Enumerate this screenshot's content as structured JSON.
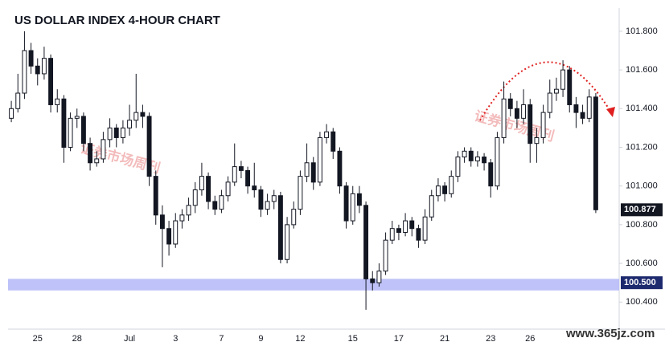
{
  "chart_data": {
    "type": "candlestick",
    "title": "US DOLLAR INDEX 4-HOUR CHART",
    "watermarks": [
      "证券市场周刊",
      "证券市场周刊",
      "www.365jz.com"
    ],
    "categories": [
      null,
      null,
      null,
      null,
      "25",
      null,
      null,
      null,
      null,
      null,
      "28",
      null,
      null,
      null,
      null,
      null,
      null,
      null,
      "Jul",
      null,
      null,
      null,
      null,
      null,
      null,
      "3",
      null,
      null,
      null,
      null,
      null,
      null,
      "7",
      null,
      null,
      null,
      null,
      null,
      "9",
      null,
      null,
      null,
      null,
      null,
      "12",
      null,
      null,
      null,
      null,
      null,
      null,
      null,
      "15",
      null,
      null,
      null,
      null,
      null,
      null,
      "17",
      null,
      null,
      null,
      null,
      null,
      null,
      "21",
      null,
      null,
      null,
      null,
      null,
      null,
      "23",
      null,
      null,
      null,
      null,
      null,
      "26",
      null,
      null,
      null,
      null,
      null,
      null,
      null,
      null,
      null,
      null
    ],
    "candles": [
      [
        101.35,
        101.44,
        101.33,
        101.4
      ],
      [
        101.4,
        101.58,
        101.38,
        101.48
      ],
      [
        101.48,
        101.8,
        101.45,
        101.7
      ],
      [
        101.7,
        101.74,
        101.58,
        101.62
      ],
      [
        101.62,
        101.66,
        101.52,
        101.58
      ],
      [
        101.58,
        101.72,
        101.55,
        101.66
      ],
      [
        101.66,
        101.68,
        101.38,
        101.42
      ],
      [
        101.42,
        101.5,
        101.38,
        101.45
      ],
      [
        101.45,
        101.47,
        101.12,
        101.2
      ],
      [
        101.2,
        101.38,
        101.18,
        101.35
      ],
      [
        101.35,
        101.4,
        101.3,
        101.36
      ],
      [
        101.36,
        101.38,
        101.18,
        101.22
      ],
      [
        101.22,
        101.25,
        101.08,
        101.12
      ],
      [
        101.12,
        101.18,
        101.1,
        101.14
      ],
      [
        101.14,
        101.28,
        101.12,
        101.24
      ],
      [
        101.24,
        101.35,
        101.2,
        101.3
      ],
      [
        101.3,
        101.32,
        101.2,
        101.25
      ],
      [
        101.25,
        101.34,
        101.22,
        101.3
      ],
      [
        101.3,
        101.42,
        101.26,
        101.34
      ],
      [
        101.34,
        101.58,
        101.3,
        101.38
      ],
      [
        101.38,
        101.42,
        101.3,
        101.36
      ],
      [
        101.36,
        101.38,
        101.0,
        101.05
      ],
      [
        101.05,
        101.08,
        100.8,
        100.85
      ],
      [
        100.85,
        100.9,
        100.58,
        100.78
      ],
      [
        100.78,
        100.82,
        100.64,
        100.7
      ],
      [
        100.7,
        100.86,
        100.68,
        100.82
      ],
      [
        100.82,
        100.88,
        100.78,
        100.85
      ],
      [
        100.85,
        100.94,
        100.82,
        100.9
      ],
      [
        100.9,
        101.02,
        100.86,
        100.98
      ],
      [
        100.98,
        101.12,
        100.95,
        101.05
      ],
      [
        101.05,
        101.07,
        100.88,
        100.92
      ],
      [
        100.92,
        100.95,
        100.85,
        100.88
      ],
      [
        100.88,
        100.98,
        100.86,
        100.95
      ],
      [
        100.95,
        101.05,
        100.92,
        101.02
      ],
      [
        101.02,
        101.22,
        101.0,
        101.1
      ],
      [
        101.1,
        101.13,
        101.04,
        101.08
      ],
      [
        101.08,
        101.1,
        100.96,
        101.0
      ],
      [
        101.0,
        101.12,
        100.94,
        100.98
      ],
      [
        100.98,
        101.0,
        100.84,
        100.88
      ],
      [
        100.88,
        100.96,
        100.85,
        100.92
      ],
      [
        100.92,
        100.98,
        100.88,
        100.95
      ],
      [
        100.95,
        100.97,
        100.6,
        100.62
      ],
      [
        100.62,
        100.84,
        100.6,
        100.8
      ],
      [
        100.8,
        100.92,
        100.78,
        100.88
      ],
      [
        100.88,
        101.08,
        100.85,
        101.05
      ],
      [
        101.05,
        101.22,
        101.02,
        101.12
      ],
      [
        101.12,
        101.15,
        100.98,
        101.02
      ],
      [
        101.02,
        101.28,
        101.0,
        101.25
      ],
      [
        101.25,
        101.32,
        101.22,
        101.28
      ],
      [
        101.28,
        101.3,
        101.14,
        101.18
      ],
      [
        101.18,
        101.2,
        100.96,
        101.0
      ],
      [
        101.0,
        101.02,
        100.78,
        100.82
      ],
      [
        100.82,
        101.0,
        100.8,
        100.96
      ],
      [
        100.96,
        101.0,
        100.86,
        100.9
      ],
      [
        100.9,
        100.92,
        100.36,
        100.52
      ],
      [
        100.52,
        100.56,
        100.46,
        100.5
      ],
      [
        100.5,
        100.6,
        100.48,
        100.56
      ],
      [
        100.56,
        100.76,
        100.54,
        100.72
      ],
      [
        100.72,
        100.82,
        100.7,
        100.78
      ],
      [
        100.78,
        100.8,
        100.72,
        100.76
      ],
      [
        100.76,
        100.86,
        100.74,
        100.82
      ],
      [
        100.82,
        100.84,
        100.74,
        100.78
      ],
      [
        100.78,
        100.8,
        100.68,
        100.72
      ],
      [
        100.72,
        100.88,
        100.7,
        100.84
      ],
      [
        100.84,
        100.98,
        100.82,
        100.95
      ],
      [
        100.95,
        101.04,
        100.92,
        101.0
      ],
      [
        101.0,
        101.02,
        100.92,
        100.96
      ],
      [
        100.96,
        101.08,
        100.94,
        101.05
      ],
      [
        101.05,
        101.18,
        101.02,
        101.15
      ],
      [
        101.15,
        101.2,
        101.12,
        101.18
      ],
      [
        101.18,
        101.2,
        101.1,
        101.13
      ],
      [
        101.13,
        101.18,
        101.1,
        101.15
      ],
      [
        101.15,
        101.17,
        101.08,
        101.12
      ],
      [
        101.12,
        101.14,
        100.94,
        101.0
      ],
      [
        101.0,
        101.28,
        100.98,
        101.25
      ],
      [
        101.25,
        101.54,
        101.22,
        101.45
      ],
      [
        101.45,
        101.48,
        101.36,
        101.4
      ],
      [
        101.4,
        101.44,
        101.3,
        101.35
      ],
      [
        101.35,
        101.5,
        101.32,
        101.42
      ],
      [
        101.42,
        101.45,
        101.12,
        101.22
      ],
      [
        101.22,
        101.3,
        101.12,
        101.25
      ],
      [
        101.25,
        101.42,
        101.22,
        101.38
      ],
      [
        101.38,
        101.55,
        101.35,
        101.48
      ],
      [
        101.48,
        101.56,
        101.44,
        101.5
      ],
      [
        101.5,
        101.65,
        101.46,
        101.6
      ],
      [
        101.6,
        101.62,
        101.38,
        101.42
      ],
      [
        101.42,
        101.46,
        101.3,
        101.38
      ],
      [
        101.38,
        101.42,
        101.32,
        101.35
      ],
      [
        101.35,
        101.5,
        101.33,
        101.46
      ],
      [
        101.46,
        101.48,
        100.86,
        100.877
      ]
    ],
    "up_color": "#ffffff",
    "down_color": "#131722",
    "ylim": [
      100.26,
      101.92
    ],
    "yticks": [
      {
        "value": 100.4,
        "label": "100.400"
      },
      {
        "value": 100.6,
        "label": "100.600"
      },
      {
        "value": 100.8,
        "label": "100.800"
      },
      {
        "value": 101.0,
        "label": "101.000"
      },
      {
        "value": 101.2,
        "label": "101.200"
      },
      {
        "value": 101.4,
        "label": "101.400"
      },
      {
        "value": 101.6,
        "label": "101.600"
      },
      {
        "value": 101.8,
        "label": "101.800"
      }
    ],
    "support_zone": [
      100.46,
      100.52
    ],
    "zone_color": "#b3b7f7",
    "zone_label": {
      "value": 100.5,
      "label": "100.500"
    },
    "zone_label_color": "#1e2a6e",
    "last_price": {
      "value": 100.877,
      "label": "100.877"
    },
    "last_price_color": "#131722"
  }
}
